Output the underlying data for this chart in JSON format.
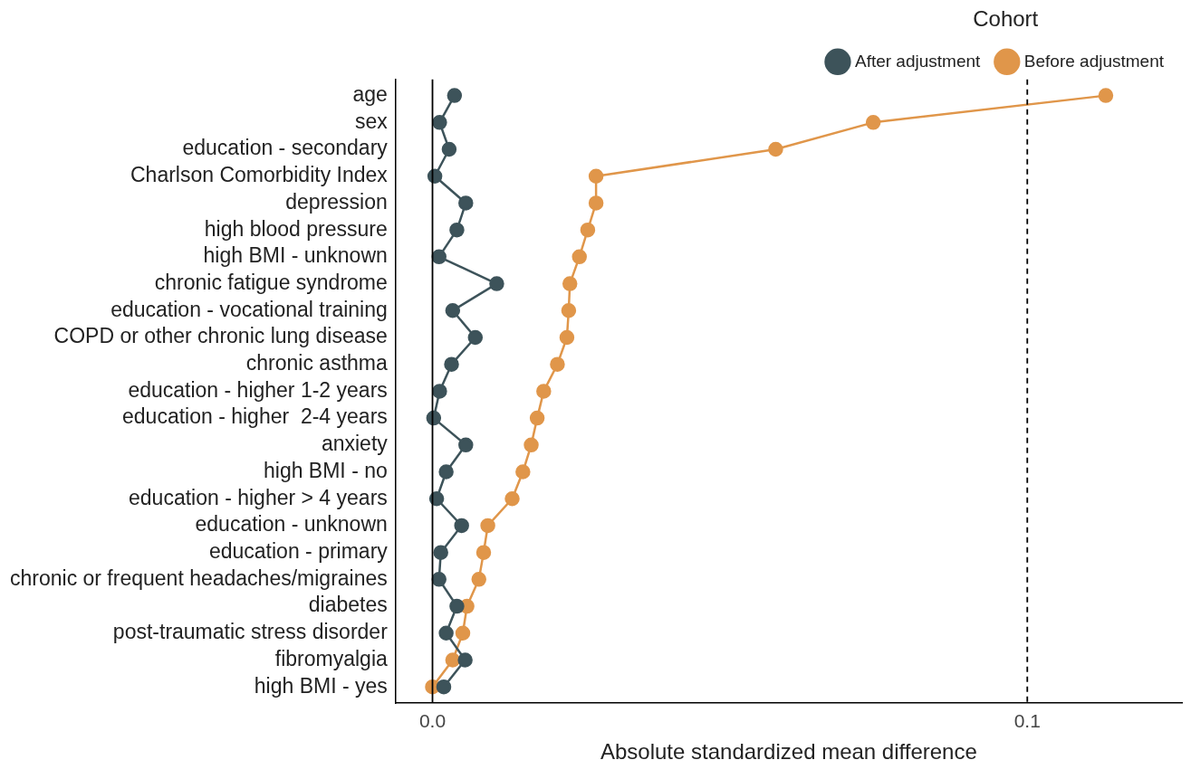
{
  "chart_data": {
    "type": "line",
    "orientation": "horizontal",
    "xlabel": "Absolute standardized mean difference",
    "legend_title": "Cohort",
    "legend": "top right",
    "grid": false,
    "marker": "circle",
    "line_style": "solid",
    "categories": [
      "age",
      "sex",
      "education - secondary",
      "Charlson Comorbidity Index",
      "depression",
      "high blood pressure",
      "high BMI - unknown",
      "chronic fatigue syndrome",
      "education - vocational training",
      "COPD or other chronic lung disease",
      "chronic asthma",
      "education - higher 1-2 years",
      "education - higher  2-4 years",
      "anxiety",
      "high BMI - no",
      "education - higher > 4 years",
      "education - unknown",
      "education - primary",
      "chronic or frequent headaches/migraines",
      "diabetes",
      "post-traumatic stress disorder",
      "fibromyalgia",
      "high BMI - yes"
    ],
    "series": [
      {
        "name": "After adjustment",
        "color": "#3d535a",
        "values": [
          0.0037,
          0.0012,
          0.0028,
          0.0004,
          0.0056,
          0.0041,
          0.0011,
          0.0108,
          0.0034,
          0.0072,
          0.0032,
          0.0012,
          0.0002,
          0.0056,
          0.0023,
          0.0007,
          0.0049,
          0.0014,
          0.0011,
          0.0041,
          0.0023,
          0.0055,
          0.0019
        ]
      },
      {
        "name": "Before adjustment",
        "color": "#e0964a",
        "values": [
          0.1132,
          0.0741,
          0.0577,
          0.0275,
          0.0275,
          0.0261,
          0.0247,
          0.0231,
          0.0229,
          0.0226,
          0.021,
          0.0187,
          0.0176,
          0.0166,
          0.0152,
          0.0134,
          0.0093,
          0.0086,
          0.0078,
          0.0058,
          0.0051,
          0.0034,
          0.0
        ]
      }
    ],
    "xlim": [
      -0.0062,
      0.126
    ],
    "xticks": [
      {
        "value": 0,
        "label": "0.0"
      },
      0.1
    ],
    "ref_lines": [
      {
        "axis": "x",
        "value": 0,
        "color": "#000000",
        "line_style": "solid"
      },
      {
        "axis": "x",
        "value": 0.1,
        "color": "#000000",
        "line_style": "dashed"
      }
    ]
  }
}
